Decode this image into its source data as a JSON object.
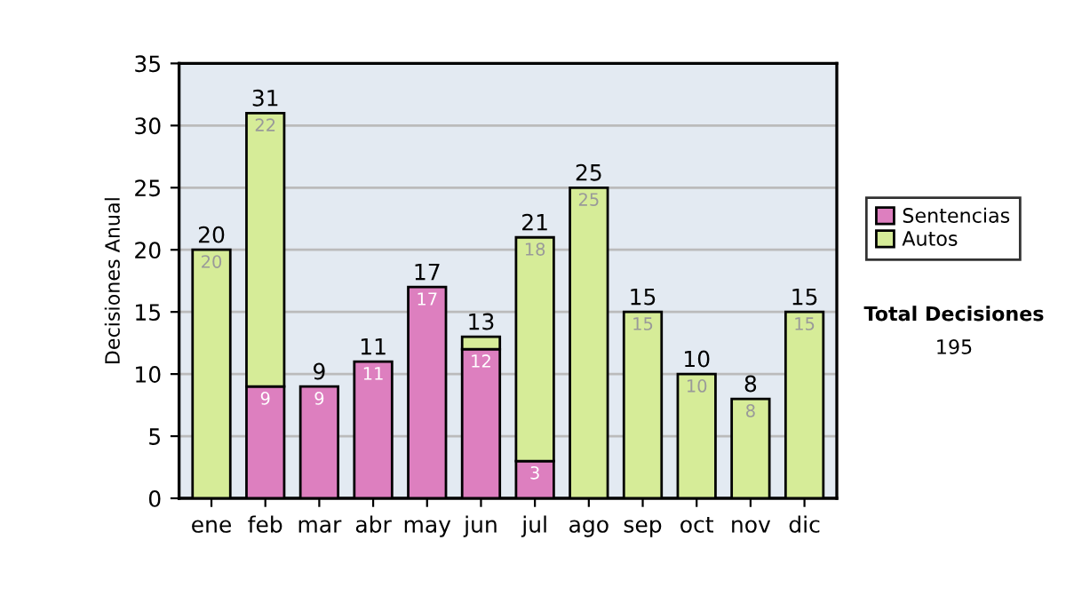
{
  "chart_data": {
    "type": "bar",
    "stacked": true,
    "ylabel": "Decisiones Anual",
    "categories": [
      "ene",
      "feb",
      "mar",
      "abr",
      "may",
      "jun",
      "jul",
      "ago",
      "sep",
      "oct",
      "nov",
      "dic"
    ],
    "series": [
      {
        "name": "Sentencias",
        "color": "#dd7fbf",
        "values": [
          0,
          9,
          9,
          11,
          17,
          12,
          3,
          0,
          0,
          0,
          0,
          0
        ],
        "value_labels": [
          null,
          "9",
          "9",
          "11",
          "17",
          "12",
          "3",
          null,
          null,
          null,
          null,
          null
        ]
      },
      {
        "name": "Autos",
        "color": "#d6ec98",
        "values": [
          20,
          22,
          0,
          0,
          0,
          1,
          18,
          25,
          15,
          10,
          8,
          15
        ],
        "value_labels": [
          "20",
          "22",
          null,
          null,
          null,
          null,
          "18",
          "25",
          "15",
          "10",
          "8",
          "15"
        ]
      }
    ],
    "totals": [
      "20",
      "31",
      "9",
      "11",
      "17",
      "13",
      "21",
      "25",
      "15",
      "10",
      "8",
      "15"
    ],
    "ylim": [
      0,
      35
    ],
    "yticks": [
      0,
      5,
      10,
      15,
      20,
      25,
      30,
      35
    ],
    "grid": "y",
    "legend": "right",
    "annotations": [
      "Total Decisiones",
      "195"
    ]
  }
}
